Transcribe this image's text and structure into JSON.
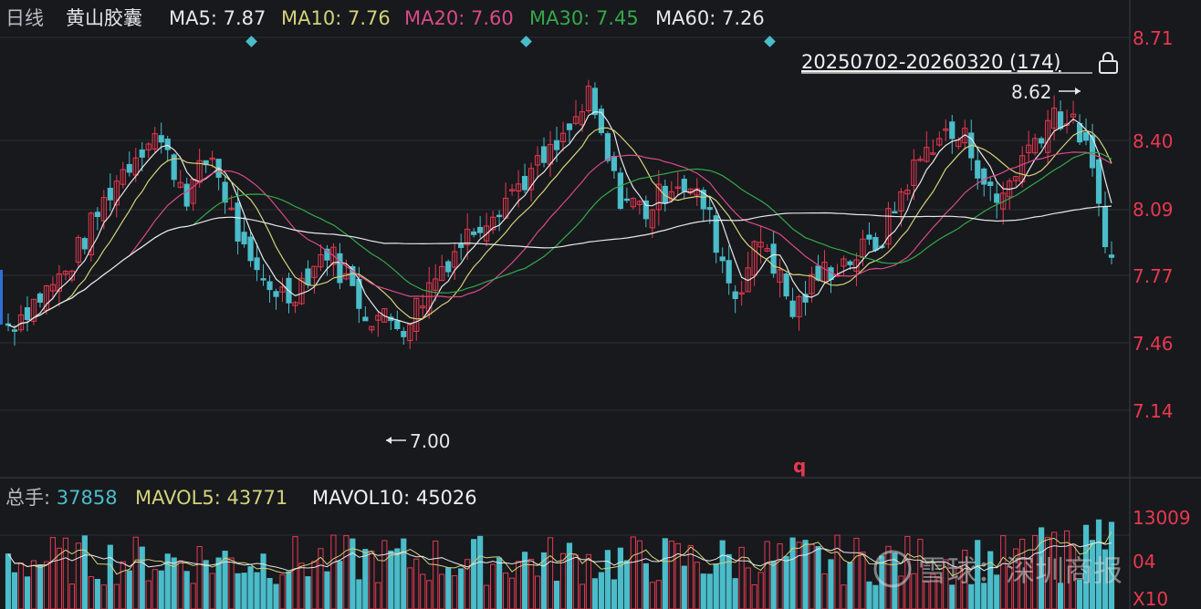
{
  "header": {
    "period": "日线",
    "stock_name": "黄山胶囊",
    "ma5_label": "MA5: 7.87",
    "ma10_label": "MA10: 7.76",
    "ma20_label": "MA20: 7.60",
    "ma30_label": "MA30: 7.45",
    "ma60_label": "MA60: 7.26"
  },
  "range_label": "20250702-20260320 (174)",
  "volume_header": {
    "total_label": "总手: 37858",
    "mavol5_label": "MAVOL5: 43771",
    "mavol10_label": "MAVOL10: 45026"
  },
  "watermark": "雪球：深圳商报",
  "colors": {
    "up": "#e8384f",
    "down": "#4bbcc9",
    "ma5": "#e8e8e8",
    "ma10": "#d4d27a",
    "ma20": "#d94a86",
    "ma30": "#35a84a",
    "ma60": "#e8e8e8",
    "axis_text": "#e8384f",
    "grid": "#2b2e35",
    "background": "#17191d"
  },
  "chart_data": [
    {
      "type": "candlestick",
      "title": "",
      "x_count": 174,
      "y_ticks": [
        "8.71",
        "8.40",
        "8.09",
        "7.77",
        "7.46",
        "7.14"
      ],
      "ylim": [
        7.14,
        8.71
      ],
      "annotations": {
        "high": "8.62",
        "low": "7.00",
        "marker": "q"
      },
      "grid": true,
      "series_mas": [
        "MA5",
        "MA10",
        "MA20",
        "MA30",
        "MA60"
      ]
    },
    {
      "type": "bar",
      "title": "",
      "y_ticks": [
        "13009",
        "04",
        "X10"
      ],
      "latest_volume": 37858,
      "mavol5": 43771,
      "mavol10": 45026
    }
  ]
}
